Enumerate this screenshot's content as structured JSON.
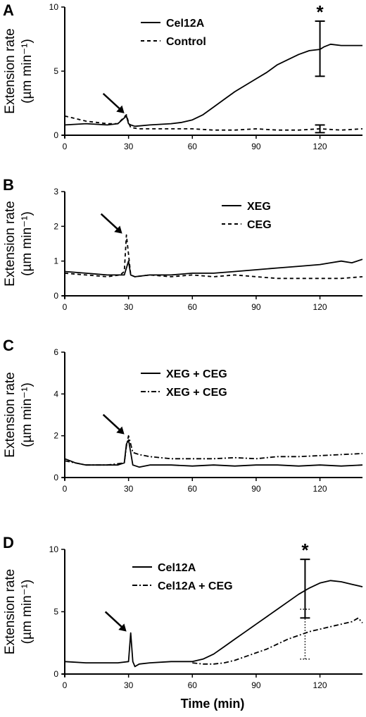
{
  "figure": {
    "xlabel": "Time (min)"
  },
  "chart_data": [
    {
      "panel": "A",
      "type": "line",
      "ylabel_line1": "Extension rate",
      "ylabel_line2": "(µm min⁻¹)",
      "xlim": [
        0,
        140
      ],
      "ylim": [
        0,
        10
      ],
      "xticks": [
        0,
        30,
        60,
        90,
        120
      ],
      "yticks": [
        0,
        5,
        10
      ],
      "annotation": "*",
      "arrow_at_x": 30,
      "series": [
        {
          "name": "Cel12A",
          "style": "solid",
          "x": [
            0,
            10,
            20,
            25,
            29,
            30,
            31,
            33,
            40,
            50,
            55,
            60,
            65,
            70,
            75,
            80,
            85,
            90,
            95,
            100,
            105,
            110,
            115,
            120,
            122,
            125,
            130,
            135,
            140
          ],
          "y": [
            0.8,
            0.9,
            0.8,
            0.9,
            1.5,
            0.9,
            0.8,
            0.7,
            0.8,
            0.9,
            1.0,
            1.2,
            1.6,
            2.2,
            2.8,
            3.4,
            3.9,
            4.4,
            4.9,
            5.5,
            5.9,
            6.3,
            6.6,
            6.7,
            6.9,
            7.1,
            7.0,
            7.0,
            7.0
          ]
        },
        {
          "name": "Control",
          "style": "dashed",
          "x": [
            0,
            5,
            10,
            15,
            20,
            25,
            29,
            30,
            31,
            35,
            40,
            50,
            60,
            70,
            80,
            90,
            100,
            110,
            120,
            130,
            140
          ],
          "y": [
            1.5,
            1.3,
            1.1,
            1.0,
            0.9,
            0.9,
            1.6,
            1.0,
            0.6,
            0.5,
            0.5,
            0.5,
            0.5,
            0.4,
            0.4,
            0.5,
            0.4,
            0.4,
            0.5,
            0.4,
            0.5
          ]
        }
      ],
      "error_bars": [
        {
          "x": 120,
          "y": 6.7,
          "low": 4.6,
          "high": 8.9,
          "style": "solid"
        },
        {
          "x": 120,
          "y": 0.5,
          "low": 0.2,
          "high": 0.8,
          "style": "solid"
        }
      ]
    },
    {
      "panel": "B",
      "type": "line",
      "ylabel_line1": "Extension rate",
      "ylabel_line2": "(µm min⁻¹)",
      "xlim": [
        0,
        140
      ],
      "ylim": [
        0,
        3
      ],
      "xticks": [
        0,
        30,
        60,
        90,
        120
      ],
      "yticks": [
        0,
        1,
        2,
        3
      ],
      "arrow_at_x": 29,
      "series": [
        {
          "name": "XEG",
          "style": "solid",
          "x": [
            0,
            10,
            20,
            25,
            28,
            30,
            31,
            33,
            40,
            50,
            60,
            70,
            80,
            90,
            100,
            110,
            120,
            125,
            130,
            135,
            140
          ],
          "y": [
            0.7,
            0.65,
            0.6,
            0.6,
            0.6,
            1.0,
            0.6,
            0.55,
            0.6,
            0.6,
            0.65,
            0.65,
            0.7,
            0.75,
            0.8,
            0.85,
            0.9,
            0.95,
            1.0,
            0.95,
            1.05
          ]
        },
        {
          "name": "CEG",
          "style": "dashed",
          "x": [
            0,
            10,
            20,
            26,
            28,
            29,
            30,
            31,
            33,
            40,
            50,
            60,
            70,
            80,
            90,
            100,
            110,
            120,
            130,
            140
          ],
          "y": [
            0.65,
            0.6,
            0.55,
            0.6,
            0.7,
            1.75,
            1.2,
            0.6,
            0.55,
            0.6,
            0.55,
            0.6,
            0.55,
            0.6,
            0.55,
            0.5,
            0.5,
            0.5,
            0.5,
            0.55
          ]
        }
      ]
    },
    {
      "panel": "C",
      "type": "line",
      "ylabel_line1": "Extension rate",
      "ylabel_line2": "(µm min⁻¹)",
      "xlim": [
        0,
        140
      ],
      "ylim": [
        0,
        6
      ],
      "xticks": [
        0,
        30,
        60,
        90,
        120
      ],
      "yticks": [
        0,
        2,
        4,
        6
      ],
      "arrow_at_x": 30,
      "series": [
        {
          "name": "XEG + CEG",
          "style": "solid",
          "x": [
            0,
            5,
            10,
            15,
            20,
            25,
            28,
            29,
            30,
            31,
            32,
            35,
            40,
            50,
            60,
            70,
            80,
            90,
            100,
            110,
            120,
            130,
            140
          ],
          "y": [
            0.9,
            0.7,
            0.6,
            0.6,
            0.6,
            0.6,
            0.7,
            1.6,
            1.8,
            1.2,
            0.6,
            0.5,
            0.6,
            0.6,
            0.55,
            0.6,
            0.55,
            0.6,
            0.6,
            0.55,
            0.6,
            0.55,
            0.6
          ]
        },
        {
          "name": "XEG + CEG",
          "style": "dashdot",
          "x": [
            0,
            5,
            10,
            20,
            28,
            29,
            30,
            31,
            32,
            35,
            40,
            50,
            60,
            70,
            80,
            90,
            100,
            110,
            120,
            130,
            140
          ],
          "y": [
            0.8,
            0.7,
            0.6,
            0.6,
            0.7,
            1.5,
            2.0,
            1.6,
            1.2,
            1.1,
            1.0,
            0.9,
            0.9,
            0.9,
            0.95,
            0.9,
            1.0,
            1.0,
            1.05,
            1.1,
            1.15
          ]
        }
      ]
    },
    {
      "panel": "D",
      "type": "line",
      "ylabel_line1": "Extension rate",
      "ylabel_line2": "(µm min⁻¹)",
      "xlim": [
        0,
        140
      ],
      "ylim": [
        0,
        10
      ],
      "xticks": [
        0,
        30,
        60,
        90,
        120
      ],
      "yticks": [
        0,
        5,
        10
      ],
      "annotation": "*",
      "arrow_at_x": 31,
      "series": [
        {
          "name": "Cel12A",
          "style": "solid",
          "x": [
            0,
            10,
            20,
            25,
            30,
            31,
            32,
            33,
            35,
            40,
            50,
            60,
            65,
            70,
            75,
            80,
            85,
            90,
            95,
            100,
            105,
            110,
            115,
            120,
            125,
            130,
            135,
            140
          ],
          "y": [
            1.0,
            0.9,
            0.9,
            0.9,
            1.0,
            3.3,
            1.0,
            0.6,
            0.8,
            0.9,
            1.0,
            1.0,
            1.2,
            1.6,
            2.2,
            2.8,
            3.4,
            4.0,
            4.6,
            5.2,
            5.8,
            6.4,
            6.9,
            7.3,
            7.5,
            7.4,
            7.2,
            7.0
          ]
        },
        {
          "name": "Cel12A + CEG",
          "style": "dashdot",
          "x": [
            60,
            65,
            70,
            75,
            80,
            85,
            90,
            95,
            100,
            105,
            110,
            115,
            120,
            125,
            130,
            135,
            138,
            140
          ],
          "y": [
            0.9,
            0.8,
            0.8,
            0.9,
            1.1,
            1.4,
            1.7,
            2.0,
            2.4,
            2.8,
            3.1,
            3.4,
            3.6,
            3.8,
            4.0,
            4.2,
            4.5,
            4.1
          ]
        }
      ],
      "error_bars": [
        {
          "x": 113,
          "y": 6.6,
          "low": 4.5,
          "high": 9.2,
          "style": "solid"
        },
        {
          "x": 113,
          "y": 3.3,
          "low": 1.2,
          "high": 5.2,
          "style": "dotted"
        }
      ]
    }
  ]
}
